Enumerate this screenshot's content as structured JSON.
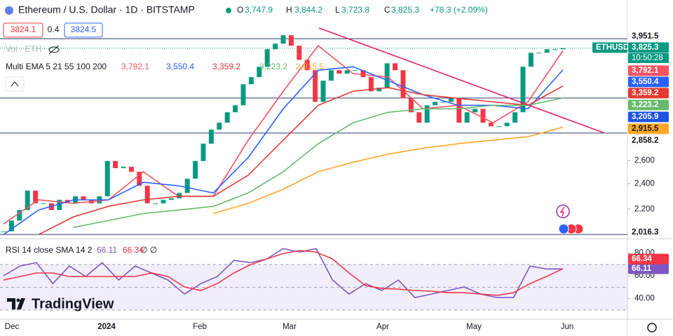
{
  "chart_data": {
    "type": "candlestick",
    "title": "Ethereum / U.S. Dollar · 1D · BITSTAMP",
    "ohlc_keys": [
      "O",
      "H",
      "L",
      "C"
    ],
    "ohlc_values": [
      "3,747.9",
      "3,844.2",
      "3,723.8",
      "3,825.3"
    ],
    "change": "+78.3 (+2.09%)",
    "sell": "3824.1",
    "spread": "0.4",
    "buy": "3824.5",
    "volume_label": "Vol · ETH",
    "ema_label": "Multi EMA 5 21 55 100 200",
    "symbol": "ETHUSD",
    "last_price": "3,825.3",
    "countdown": "10:50:28",
    "log_scale": true,
    "ylim": [
      1992,
      4515
    ],
    "yticks": [
      {
        "value": 2200,
        "label": "2,200"
      },
      {
        "value": 2400,
        "label": "2,400"
      },
      {
        "value": 2600,
        "label": "2,600"
      }
    ],
    "up_color": "#089981",
    "down_color": "#f23645",
    "close": [
      2038,
      2115,
      2193,
      2344,
      2244,
      2244,
      2193,
      2271,
      2244,
      2299,
      2271,
      2244,
      2299,
      2596,
      2533,
      2545,
      2501,
      2384,
      2244,
      2244,
      2271,
      2283,
      2326,
      2442,
      2596,
      2755,
      2891,
      2961,
      3069,
      3144,
      3380,
      3463,
      3589,
      3812,
      3886,
      4000,
      3858,
      3676,
      3547,
      3181,
      3421,
      3547,
      3505,
      3547,
      3547,
      3463,
      3299,
      3340,
      3632,
      3547,
      3220,
      3069,
      2961,
      3144,
      3181,
      3181,
      3220,
      2961,
      3069,
      3106,
      2961,
      2925,
      2925,
      2961,
      3069,
      3589,
      3766,
      3766,
      3812,
      3812,
      3825.3
    ],
    "series": [
      {
        "color": "#f7525f",
        "value_label": "3,792.1",
        "values": [
          2090,
          2271,
          2244,
          2271,
          2501,
          2299,
          2299,
          2789,
          3299,
          3858,
          3505,
          3463,
          3106,
          3144,
          2961,
          3181,
          3792.1
        ]
      },
      {
        "color": "#2962ff",
        "value_label": "3,550.4",
        "values": [
          2015,
          2193,
          2271,
          2271,
          2413,
          2384,
          2326,
          2627,
          3106,
          3547,
          3589,
          3421,
          3260,
          3144,
          3144,
          3106,
          3550.4
        ]
      },
      {
        "color": "#e53935",
        "value_label": "3,359.2",
        "values": [
          null,
          2015,
          2142,
          2221,
          2271,
          2299,
          2299,
          2472,
          2789,
          3144,
          3299,
          3340,
          3260,
          3220,
          3181,
          3144,
          3359.2
        ]
      },
      {
        "color": "#66bb6a",
        "value_label": "3,223.2",
        "values": [
          null,
          null,
          2066,
          2115,
          2167,
          2193,
          2221,
          2326,
          2501,
          2755,
          2961,
          3069,
          3106,
          3106,
          3144,
          3144,
          3223.2
        ]
      },
      {
        "color": "#ffa726",
        "value_label": "2,915.5",
        "values": [
          null,
          null,
          null,
          null,
          null,
          null,
          2167,
          2244,
          2355,
          2501,
          2585,
          2658,
          2712,
          2755,
          2789,
          2822,
          2915.5
        ]
      }
    ],
    "levels": [
      {
        "value": 3951.5,
        "label": "3,951.5"
      },
      {
        "value": 3223.2
      },
      {
        "value": 2858.2,
        "label": "2,858.2"
      },
      {
        "value": 2016.3,
        "label": "2,016.3"
      }
    ],
    "trend_label": "3,205.9",
    "time_labels": [
      "Dec",
      "2024",
      "Feb",
      "Mar",
      "Apr",
      "May",
      "Jun"
    ],
    "rsi": {
      "label": "RSI 14 close SMA 14 2",
      "extra": "∅ ∅",
      "ylim": [
        22.5,
        90.2
      ],
      "yticks": [
        {
          "value": 80,
          "label": "80.00"
        },
        {
          "value": 60,
          "label": "60.00"
        },
        {
          "value": 40,
          "label": "40.00"
        }
      ],
      "bands": [
        70,
        50,
        30
      ],
      "series": [
        {
          "color": "#7e57c2",
          "value_label": "66.11",
          "values": [
            60,
            68.6,
            71.7,
            53.2,
            68.6,
            59.4,
            71.7,
            56.3,
            68.6,
            62.5,
            56.3,
            44,
            53.2,
            59.4,
            73.5,
            71.7,
            74.8,
            84,
            80.9,
            84,
            56.3,
            44,
            53.2,
            47.1,
            56.3,
            40.9,
            44,
            47.1,
            50.2,
            44,
            40.9,
            40.9,
            68.6,
            66,
            66.11
          ]
        },
        {
          "color": "#f23645",
          "value_label": "66.34",
          "values": [
            56.3,
            59.4,
            62.5,
            62.5,
            59.4,
            59.4,
            59.4,
            59.4,
            59.4,
            62.5,
            59.4,
            50.2,
            47.1,
            53.2,
            62.5,
            69.8,
            74.8,
            79.7,
            82.2,
            80.9,
            74.8,
            62.5,
            51.4,
            48.9,
            48.3,
            47.1,
            46.5,
            45.2,
            45.2,
            44,
            42.8,
            45.2,
            53.2,
            59.4,
            66.34
          ]
        }
      ]
    },
    "watermark": "TradingView"
  }
}
